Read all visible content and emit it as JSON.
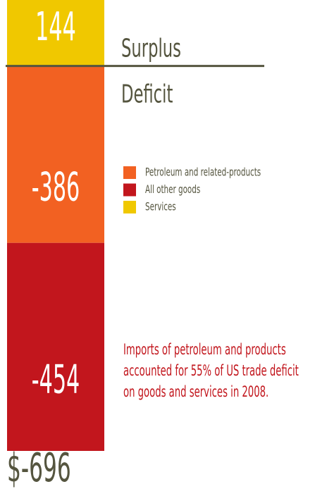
{
  "chart_data": {
    "type": "stacked_bar",
    "series": [
      {
        "name": "Petroleum and related-products",
        "color": "#f26122",
        "values": [
          -386
        ]
      },
      {
        "name": "All other goods",
        "color": "#c2161d",
        "values": [
          -454
        ]
      },
      {
        "name": "Services",
        "color": "#f0c800",
        "values": [
          144
        ]
      }
    ],
    "stack_order": [
      2,
      0,
      1
    ],
    "ylim": [
      -840,
      144
    ],
    "positive_label": "Surplus",
    "negative_label": "Deficit",
    "annotation": [
      "Imports of petroleum and products",
      "accounted for 55% of US trade deficit",
      "on goods and services in 2008."
    ],
    "total": "$-696"
  }
}
